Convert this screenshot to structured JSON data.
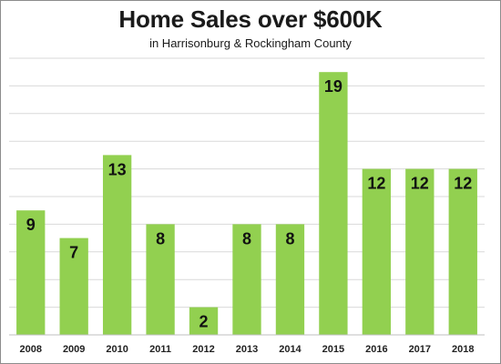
{
  "chart_data": {
    "type": "bar",
    "title": "Home Sales over $600K",
    "subtitle": "in Harrisonburg & Rockingham County",
    "categories": [
      "2008",
      "2009",
      "2010",
      "2011",
      "2012",
      "2013",
      "2014",
      "2015",
      "2016",
      "2017",
      "2018"
    ],
    "values": [
      9,
      7,
      13,
      8,
      2,
      8,
      8,
      19,
      12,
      12,
      12
    ],
    "ylim": [
      0,
      20
    ],
    "grid": true,
    "data_labels": true,
    "bar_color": "#92d050",
    "grid_color": "#d9d9d9"
  }
}
